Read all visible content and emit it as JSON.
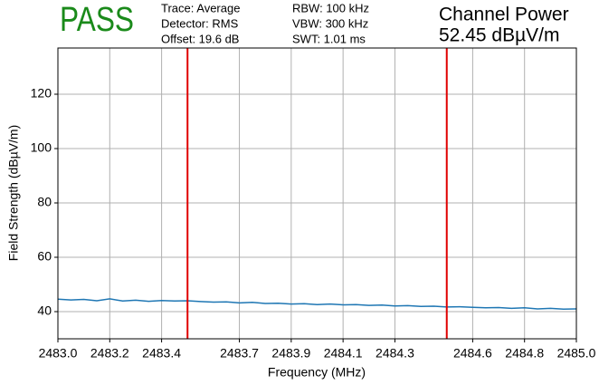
{
  "chart_data": {
    "type": "line",
    "status": "PASS",
    "settings_left": [
      "Trace: Average",
      "Detector: RMS",
      "Offset: 19.6 dB"
    ],
    "settings_right": [
      "RBW: 100 kHz",
      "VBW: 300 kHz",
      "SWT: 1.01 ms"
    ],
    "result_title": "Channel Power",
    "result_value": "52.45 dBµV/m",
    "xlabel": "Frequency (MHz)",
    "ylabel": "Field Strength (dBµV/m)",
    "x": [
      2483.0,
      2483.05,
      2483.1,
      2483.15,
      2483.2,
      2483.25,
      2483.3,
      2483.35,
      2483.4,
      2483.45,
      2483.5,
      2483.55,
      2483.6,
      2483.65,
      2483.7,
      2483.75,
      2483.8,
      2483.85,
      2483.9,
      2483.95,
      2484.0,
      2484.05,
      2484.1,
      2484.15,
      2484.2,
      2484.25,
      2484.3,
      2484.35,
      2484.4,
      2484.45,
      2484.5,
      2484.55,
      2484.6,
      2484.65,
      2484.7,
      2484.75,
      2484.8,
      2484.85,
      2484.9,
      2484.95,
      2485.0
    ],
    "series": [
      {
        "color": "#1f77b4",
        "values": [
          44.6,
          44.3,
          44.5,
          44.0,
          44.7,
          43.9,
          44.2,
          43.8,
          44.1,
          43.9,
          44.0,
          43.7,
          43.5,
          43.6,
          43.2,
          43.4,
          43.0,
          43.1,
          42.8,
          42.9,
          42.6,
          42.8,
          42.5,
          42.6,
          42.3,
          42.4,
          42.1,
          42.2,
          41.9,
          42.0,
          41.7,
          41.8,
          41.6,
          41.4,
          41.5,
          41.2,
          41.4,
          41.0,
          41.2,
          40.9,
          41.0
        ]
      }
    ],
    "vlines": [
      2483.5,
      2484.5
    ],
    "vline_color": "#e00000",
    "xlim": [
      2483.0,
      2485.0
    ],
    "xticks": [
      {
        "value": 2483.0,
        "label": "2483.0"
      },
      2483.2,
      2483.4,
      2483.7,
      2483.9,
      2484.1,
      2484.3,
      2484.6,
      2484.8,
      {
        "value": 2485.0,
        "label": "2485.0"
      }
    ],
    "ylim": [
      30,
      137
    ],
    "yticks": [
      40,
      60,
      80,
      100,
      120
    ],
    "grid": true
  }
}
